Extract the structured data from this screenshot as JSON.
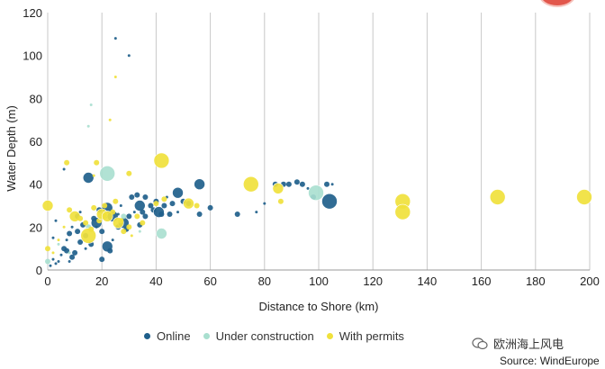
{
  "chart_data": {
    "type": "scatter",
    "xlabel": "Distance to Shore (km)",
    "ylabel": "Water Depth (m)",
    "xlim": [
      0,
      200
    ],
    "ylim": [
      0,
      120
    ],
    "xticks": [
      0,
      20,
      40,
      60,
      80,
      100,
      120,
      140,
      160,
      180,
      200
    ],
    "yticks": [
      0,
      20,
      40,
      60,
      80,
      100,
      120
    ],
    "grid": "vertical",
    "legend_position": "bottom",
    "series": [
      {
        "name": "Online",
        "color": "#1f5f8b",
        "points": [
          [
            25,
            108,
            1
          ],
          [
            30,
            100,
            1
          ],
          [
            6,
            47,
            1
          ],
          [
            15,
            43,
            3
          ],
          [
            22,
            29,
            3
          ],
          [
            24,
            25,
            3
          ],
          [
            26,
            20,
            2
          ],
          [
            28,
            22,
            3
          ],
          [
            30,
            25,
            2
          ],
          [
            31,
            34,
            2
          ],
          [
            33,
            35,
            2
          ],
          [
            34,
            30,
            3
          ],
          [
            35,
            27,
            2
          ],
          [
            36,
            25,
            2
          ],
          [
            38,
            30,
            2
          ],
          [
            39,
            28,
            2
          ],
          [
            40,
            32,
            2
          ],
          [
            41,
            27,
            3
          ],
          [
            43,
            30,
            2
          ],
          [
            45,
            26,
            2
          ],
          [
            46,
            31,
            2
          ],
          [
            48,
            36,
            3
          ],
          [
            50,
            32,
            2
          ],
          [
            52,
            31,
            2
          ],
          [
            56,
            26,
            2
          ],
          [
            56,
            40,
            3
          ],
          [
            60,
            29,
            2
          ],
          [
            70,
            26,
            2
          ],
          [
            77,
            27,
            1
          ],
          [
            80,
            31,
            1
          ],
          [
            84,
            40,
            2
          ],
          [
            87,
            40,
            2
          ],
          [
            89,
            40,
            2
          ],
          [
            92,
            41,
            2
          ],
          [
            94,
            40,
            2
          ],
          [
            96,
            38,
            1
          ],
          [
            98,
            34,
            2
          ],
          [
            103,
            40,
            2
          ],
          [
            104,
            32,
            4
          ],
          [
            105,
            40,
            1
          ],
          [
            18,
            22,
            3
          ],
          [
            19,
            28,
            2
          ],
          [
            20,
            18,
            2
          ],
          [
            21,
            25,
            2
          ],
          [
            16,
            12,
            2
          ],
          [
            14,
            16,
            2
          ],
          [
            13,
            21,
            2
          ],
          [
            11,
            18,
            2
          ],
          [
            12,
            13,
            2
          ],
          [
            10,
            8,
            2
          ],
          [
            9,
            6,
            2
          ],
          [
            8,
            4,
            1
          ],
          [
            7,
            9,
            2
          ],
          [
            6,
            10,
            2
          ],
          [
            5,
            7,
            1
          ],
          [
            4,
            4,
            1
          ],
          [
            3,
            3,
            1
          ],
          [
            2,
            5,
            1
          ],
          [
            1,
            2,
            1
          ],
          [
            7,
            14,
            1
          ],
          [
            8,
            17,
            2
          ],
          [
            9,
            20,
            1
          ],
          [
            11,
            25,
            2
          ],
          [
            12,
            27,
            1
          ],
          [
            14,
            10,
            1
          ],
          [
            17,
            24,
            2
          ],
          [
            18,
            20,
            1
          ],
          [
            22,
            11,
            3
          ],
          [
            23,
            9,
            2
          ],
          [
            24,
            14,
            1
          ],
          [
            27,
            30,
            1
          ],
          [
            29,
            19,
            2
          ],
          [
            32,
            27,
            1
          ],
          [
            34,
            21,
            2
          ],
          [
            36,
            34,
            2
          ],
          [
            42,
            26,
            2
          ],
          [
            44,
            34,
            1
          ],
          [
            48,
            27,
            1
          ],
          [
            20,
            5,
            2
          ],
          [
            26,
            26,
            1
          ],
          [
            3,
            23,
            1
          ],
          [
            2,
            15,
            1
          ]
        ]
      },
      {
        "name": "Under construction",
        "color": "#a9dfcf",
        "points": [
          [
            22,
            45,
            4
          ],
          [
            42,
            17,
            3
          ],
          [
            99,
            36,
            4
          ],
          [
            15,
            67,
            1
          ],
          [
            16,
            77,
            1
          ],
          [
            0,
            4,
            2
          ],
          [
            4,
            12,
            1
          ],
          [
            15,
            20,
            2
          ],
          [
            28,
            25,
            2
          ],
          [
            34,
            18,
            1
          ],
          [
            8,
            8,
            1
          ]
        ]
      },
      {
        "name": "With permits",
        "color": "#f0e13c",
        "points": [
          [
            0,
            30,
            3
          ],
          [
            0,
            10,
            2
          ],
          [
            7,
            50,
            2
          ],
          [
            18,
            50,
            2
          ],
          [
            25,
            90,
            1
          ],
          [
            23,
            70,
            1
          ],
          [
            30,
            45,
            2
          ],
          [
            42,
            51,
            4
          ],
          [
            17,
            44,
            1
          ],
          [
            8,
            28,
            2
          ],
          [
            10,
            25,
            3
          ],
          [
            12,
            24,
            2
          ],
          [
            14,
            22,
            2
          ],
          [
            15,
            16,
            4
          ],
          [
            16,
            19,
            2
          ],
          [
            17,
            29,
            2
          ],
          [
            19,
            23,
            2
          ],
          [
            20,
            26,
            3
          ],
          [
            21,
            30,
            2
          ],
          [
            22,
            25,
            3
          ],
          [
            24,
            27,
            2
          ],
          [
            25,
            32,
            2
          ],
          [
            26,
            22,
            3
          ],
          [
            27,
            23,
            2
          ],
          [
            28,
            18,
            2
          ],
          [
            30,
            20,
            2
          ],
          [
            31,
            16,
            1
          ],
          [
            33,
            25,
            2
          ],
          [
            35,
            22,
            2
          ],
          [
            40,
            31,
            2
          ],
          [
            43,
            33,
            2
          ],
          [
            52,
            31,
            3
          ],
          [
            55,
            30,
            2
          ],
          [
            75,
            40,
            4
          ],
          [
            85,
            38,
            3
          ],
          [
            86,
            32,
            2
          ],
          [
            131,
            32,
            4
          ],
          [
            131,
            27,
            4
          ],
          [
            166,
            34,
            4
          ],
          [
            198,
            34,
            4
          ],
          [
            2,
            8,
            1
          ],
          [
            4,
            14,
            1
          ],
          [
            6,
            20,
            1
          ]
        ]
      }
    ]
  },
  "legend": {
    "items": [
      {
        "label": "Online",
        "color": "#1f5f8b"
      },
      {
        "label": "Under construction",
        "color": "#a9dfcf"
      },
      {
        "label": "With permits",
        "color": "#f0e13c"
      }
    ]
  },
  "watermark": {
    "text": "欧洲海上风电"
  },
  "source": {
    "text": "Source: WindEurope"
  }
}
